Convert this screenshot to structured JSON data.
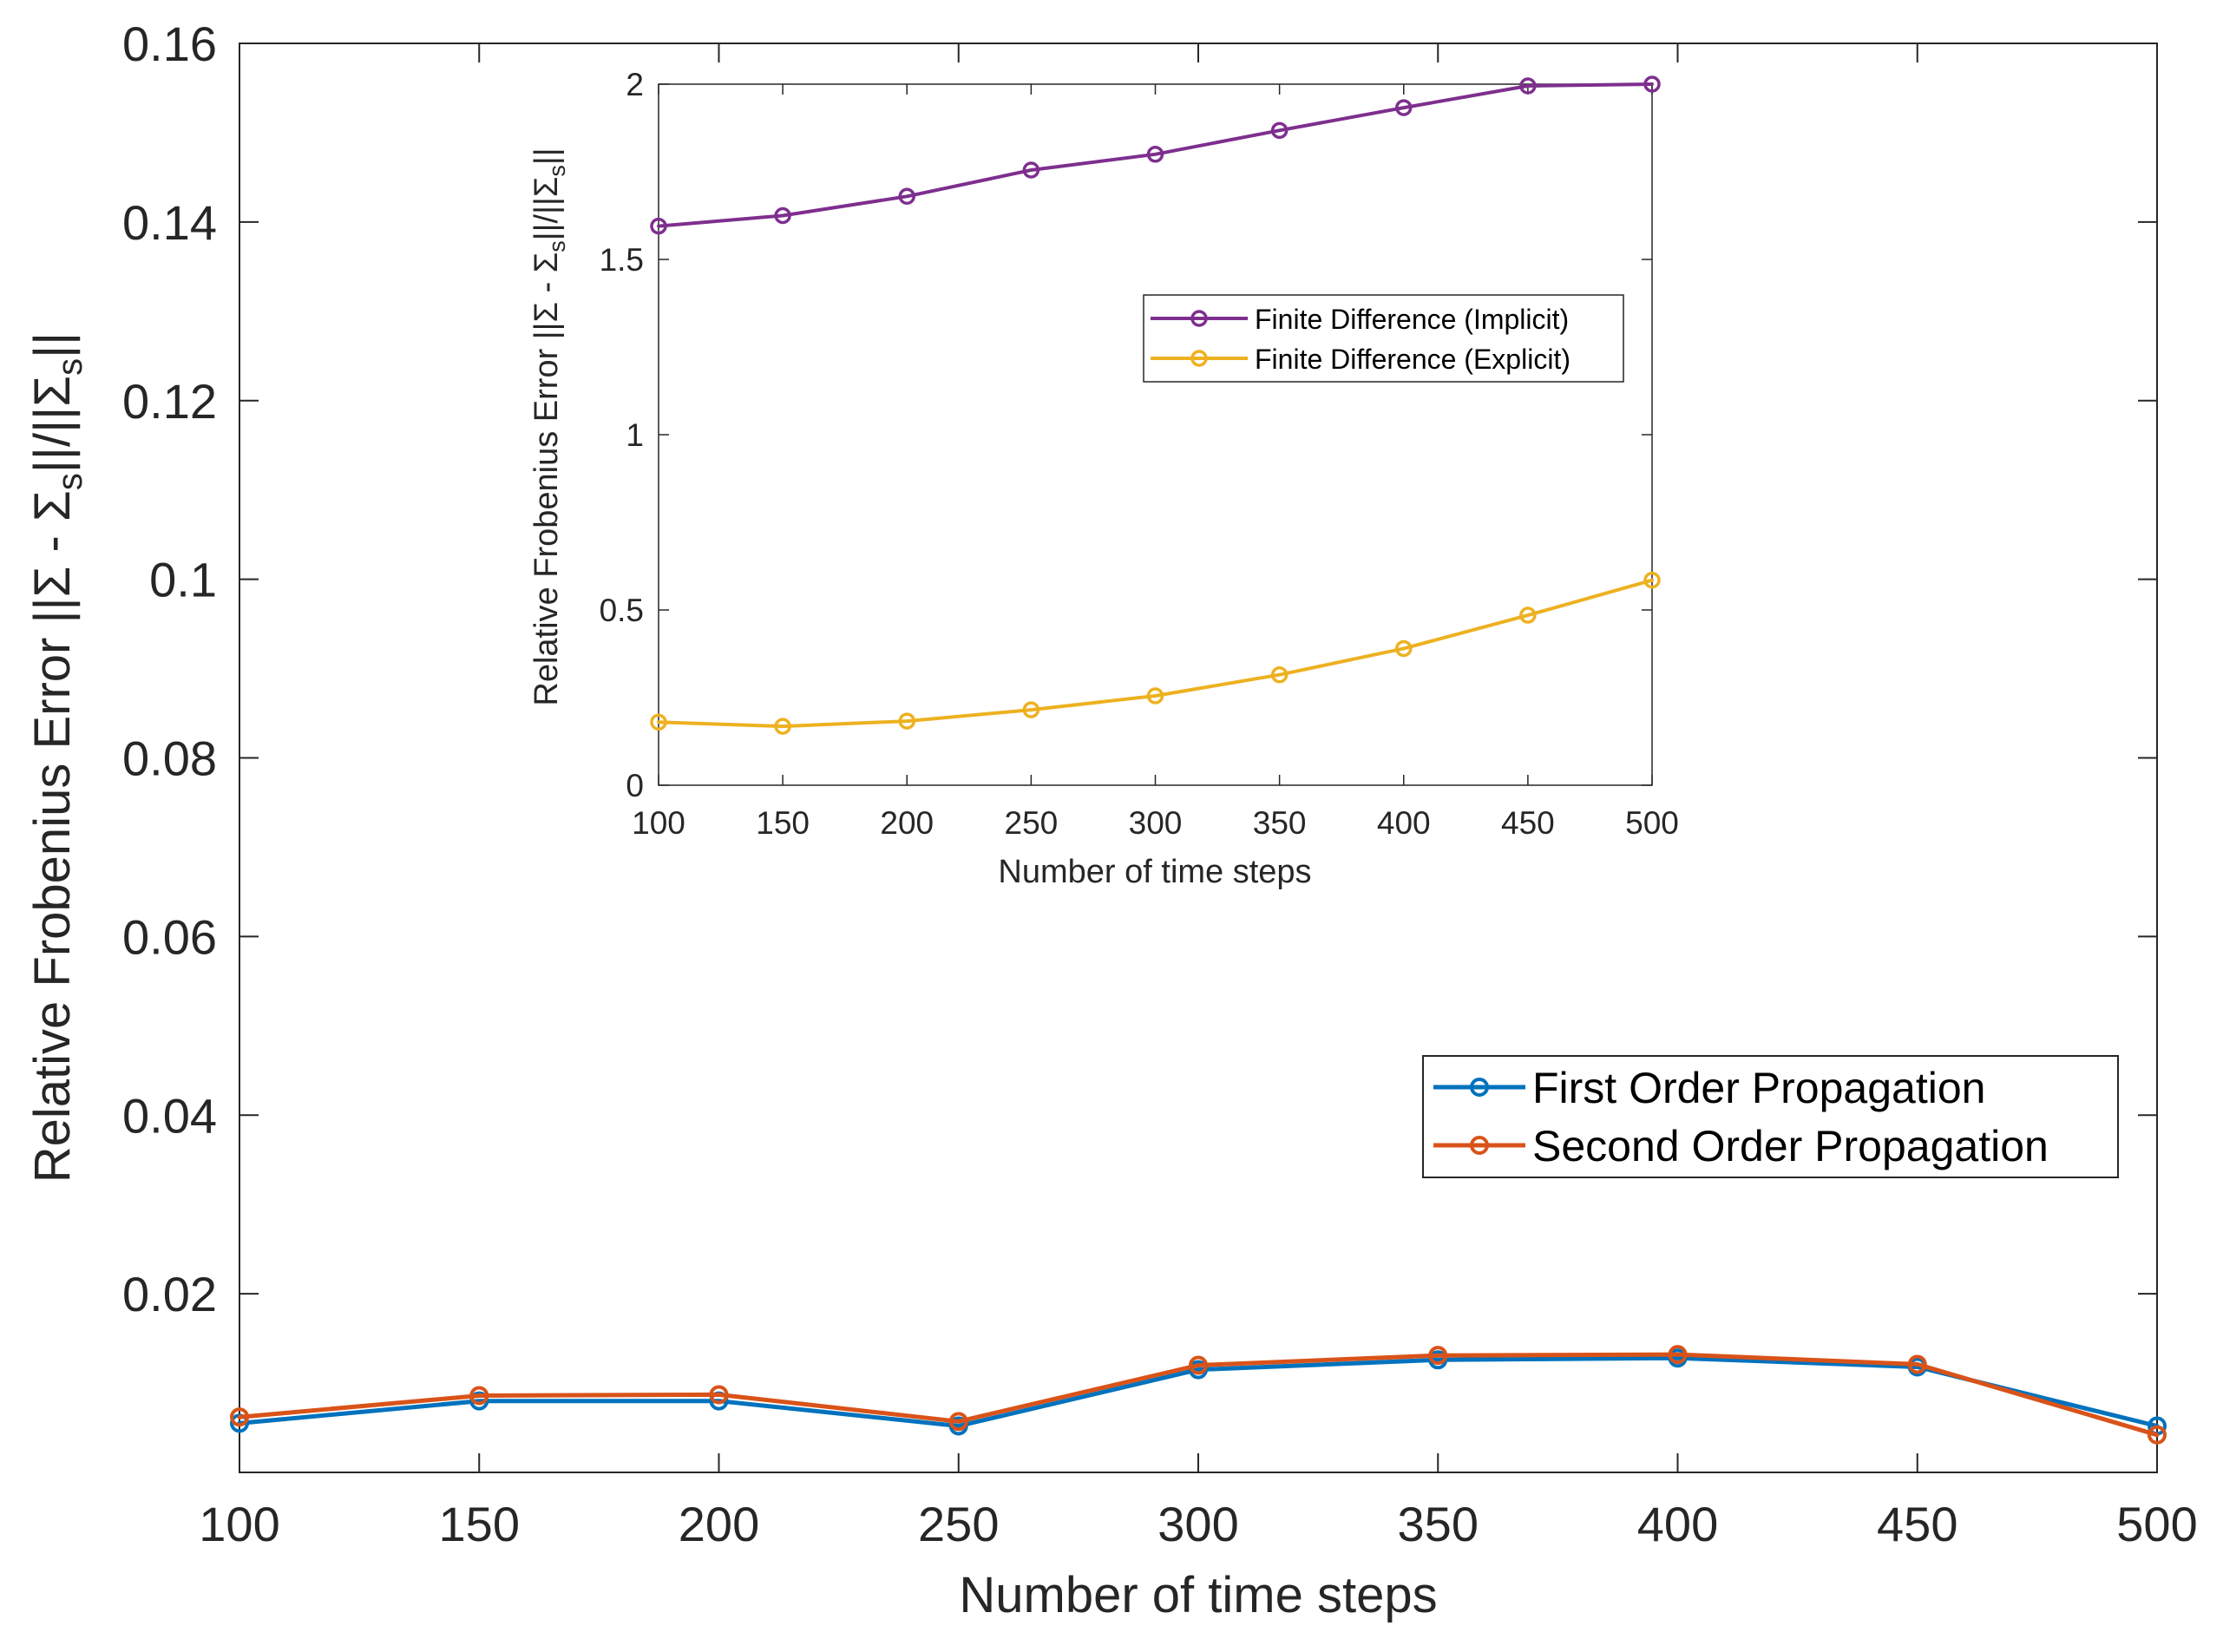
{
  "chart_data": [
    {
      "id": "main",
      "type": "line",
      "title": "",
      "xlabel": "Number of time steps",
      "ylabel_parts": [
        "Relative Frobenius Error ||",
        "Σ",
        " - ",
        "Σ",
        "s",
        "||/||",
        "Σ",
        "s",
        "||"
      ],
      "x": [
        100,
        150,
        200,
        250,
        300,
        350,
        400,
        450,
        500
      ],
      "xlim": [
        100,
        500
      ],
      "ylim": [
        0,
        0.16
      ],
      "xticks": [
        "100",
        "150",
        "200",
        "250",
        "300",
        "350",
        "400",
        "450",
        "500"
      ],
      "yticks": [
        "0.02",
        "0.04",
        "0.06",
        "0.08",
        "0.1",
        "0.12",
        "0.14",
        "0.16"
      ],
      "ytick_values": [
        0.02,
        0.04,
        0.06,
        0.08,
        0.1,
        0.12,
        0.14,
        0.16
      ],
      "legend_position": "center-right",
      "series": [
        {
          "name": "First Order Propagation",
          "color": "#0072BD",
          "values": [
            0.0055,
            0.008,
            0.008,
            0.0052,
            0.0115,
            0.0126,
            0.0128,
            0.0118,
            0.0052
          ]
        },
        {
          "name": "Second Order Propagation",
          "color": "#D95319",
          "values": [
            0.0062,
            0.0086,
            0.0087,
            0.0057,
            0.012,
            0.0131,
            0.0132,
            0.0121,
            0.0042
          ]
        }
      ]
    },
    {
      "id": "inset",
      "type": "line",
      "title": "",
      "xlabel": "Number of time steps",
      "ylabel_parts": [
        "Relative Frobenius Error ||",
        "Σ",
        " - ",
        "Σ",
        "s",
        "||/||",
        "Σ",
        "s",
        "||"
      ],
      "x": [
        100,
        150,
        200,
        250,
        300,
        350,
        400,
        450,
        500
      ],
      "xlim": [
        100,
        500
      ],
      "ylim": [
        0,
        2
      ],
      "xticks": [
        "100",
        "150",
        "200",
        "250",
        "300",
        "350",
        "400",
        "450",
        "500"
      ],
      "yticks": [
        "0",
        "0.5",
        "1",
        "1.5",
        "2"
      ],
      "ytick_values": [
        0,
        0.5,
        1,
        1.5,
        2
      ],
      "legend_position": "upper-right",
      "series": [
        {
          "name": "Finite Difference (Implicit)",
          "color": "#7E2F8E",
          "values": [
            1.595,
            1.625,
            1.68,
            1.755,
            1.8,
            1.868,
            1.933,
            1.995,
            2.0
          ]
        },
        {
          "name": "Finite Difference (Explicit)",
          "color": "#EDB120",
          "values": [
            0.18,
            0.168,
            0.183,
            0.215,
            0.255,
            0.315,
            0.39,
            0.485,
            0.585
          ]
        }
      ]
    }
  ]
}
